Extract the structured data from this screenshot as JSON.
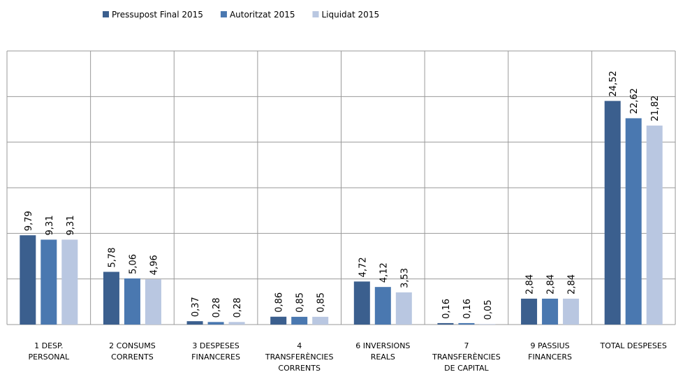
{
  "chart_data": {
    "type": "bar",
    "categories": [
      "1 DESP. PERSONAL",
      "2 CONSUMS CORRENTS",
      "3 DESPESES FINANCERES",
      "4 TRANSFERÈNCIES CORRENTS",
      "6 INVERSIONS REALS",
      "7 TRANSFERÈNCIES DE CAPITAL",
      "9 PASSIUS FINANCERS",
      "TOTAL DESPESES"
    ],
    "series": [
      {
        "name": "Pressupost Final 2015",
        "color": "#3b5f8e",
        "values": [
          9.79,
          5.78,
          0.37,
          0.86,
          4.72,
          0.16,
          2.84,
          24.52
        ],
        "value_labels": [
          "9,79",
          "5,78",
          "0,37",
          "0,86",
          "4,72",
          "0,16",
          "2,84",
          "24,52"
        ]
      },
      {
        "name": "Autoritzat 2015",
        "color": "#4a78b0",
        "values": [
          9.31,
          5.06,
          0.28,
          0.85,
          4.12,
          0.16,
          2.84,
          22.62
        ],
        "value_labels": [
          "9,31",
          "5,06",
          "0,28",
          "0,85",
          "4,12",
          "0,16",
          "2,84",
          "22,62"
        ]
      },
      {
        "name": "Liquidat 2015",
        "color": "#b9c7e1",
        "values": [
          9.31,
          4.96,
          0.28,
          0.85,
          3.53,
          0.05,
          2.84,
          21.82
        ],
        "value_labels": [
          "9,31",
          "4,96",
          "0,28",
          "0,85",
          "3,53",
          "0,05",
          "2,84",
          "21,82"
        ]
      }
    ],
    "ylim": [
      0,
      30
    ],
    "yticks": [
      0,
      5,
      10,
      15,
      20,
      25,
      30
    ],
    "grid": true,
    "legend": "top"
  }
}
